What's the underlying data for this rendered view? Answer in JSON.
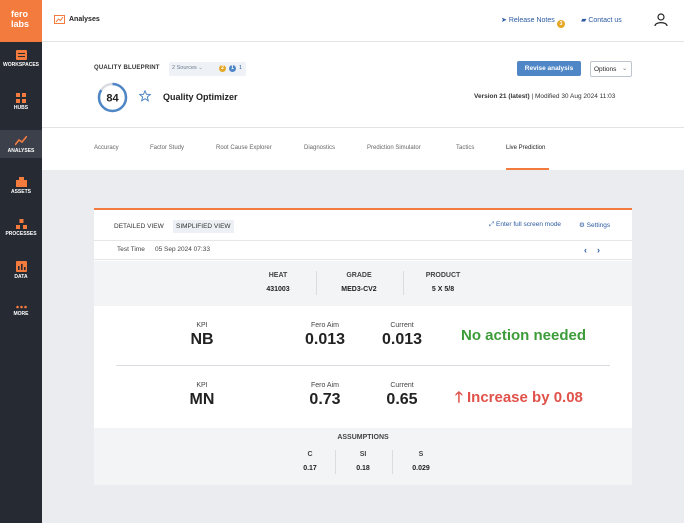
{
  "sidebar": {
    "logo_line1": "fero",
    "logo_line2": "labs",
    "items": [
      {
        "label": "WORKSPACES",
        "icon": "workspaces-icon"
      },
      {
        "label": "HUBS",
        "icon": "hubs-icon"
      },
      {
        "label": "ANALYSES",
        "icon": "analyses-icon"
      },
      {
        "label": "ASSETS",
        "icon": "assets-icon"
      },
      {
        "label": "PROCESSES",
        "icon": "processes-icon"
      },
      {
        "label": "DATA",
        "icon": "data-icon"
      },
      {
        "label": "MORE",
        "icon": "more-icon"
      }
    ]
  },
  "header": {
    "title": "Analyses",
    "release_notes": "Release Notes",
    "release_badge": "3",
    "contact": "Contact us"
  },
  "blueprint": {
    "label": "QUALITY BLUEPRINT",
    "sources": "2 Sources",
    "source_badge_1": "2",
    "source_badge_2": "1",
    "source_extra": "1",
    "revise": "Revise analysis",
    "options": "Options",
    "score": "84",
    "title": "Quality Optimizer",
    "version_bold": "Version 21 (latest)",
    "modified": " | Modified 30 Aug 2024 11:03"
  },
  "tabs": [
    "Accuracy",
    "Factor Study",
    "Root Cause Explorer",
    "Diagnostics",
    "Prediction Simulator",
    "Tactics",
    "Live Prediction"
  ],
  "panel": {
    "detailed": "DETAILED VIEW",
    "simplified": "SIMPLIFIED VIEW",
    "fullscreen": "Enter full screen mode",
    "settings": "Settings",
    "test_time_label": "Test Time",
    "test_time_value": "05 Sep 2024 07:33",
    "prev": "‹",
    "next": "›"
  },
  "heat_info": {
    "heat_label": "HEAT",
    "heat_value": "431003",
    "grade_label": "GRADE",
    "grade_value": "MED3-CV2",
    "product_label": "PRODUCT",
    "product_value": "5 X 5/8"
  },
  "kpis": [
    {
      "kpi_label": "KPI",
      "kpi": "NB",
      "aim_label": "Fero Aim",
      "aim": "0.013",
      "current_label": "Current",
      "current": "0.013",
      "message": "No action needed"
    },
    {
      "kpi_label": "KPI",
      "kpi": "MN",
      "aim_label": "Fero Aim",
      "aim": "0.73",
      "current_label": "Current",
      "current": "0.65",
      "message": "Increase by 0.08"
    }
  ],
  "assumptions": {
    "title": "ASSUMPTIONS",
    "items": [
      {
        "label": "C",
        "value": "0.17"
      },
      {
        "label": "SI",
        "value": "0.18"
      },
      {
        "label": "S",
        "value": "0.029"
      }
    ]
  },
  "colors": {
    "accent": "#f47b3e",
    "sidebar": "#262a33",
    "ok": "#3d9c3a",
    "alert": "#e0524a",
    "link": "#2c5aa0"
  }
}
